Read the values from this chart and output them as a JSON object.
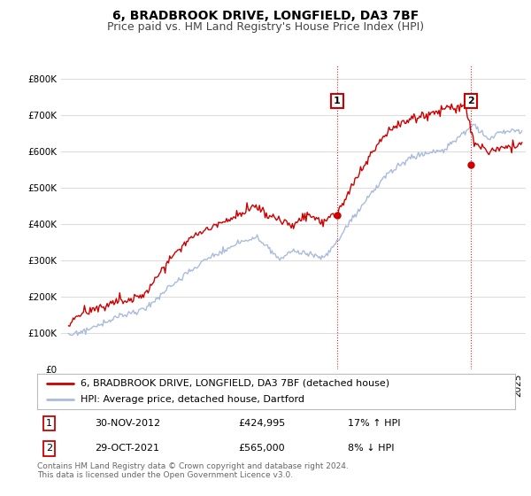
{
  "title": "6, BRADBROOK DRIVE, LONGFIELD, DA3 7BF",
  "subtitle": "Price paid vs. HM Land Registry's House Price Index (HPI)",
  "bg_color": "#ffffff",
  "plot_bg": "#ffffff",
  "line1_color": "#cc0000",
  "line2_color": "#aabbdd",
  "sale1_x": 2012.92,
  "sale1_price": 424995,
  "sale2_x": 2021.83,
  "sale2_price": 565000,
  "ylim": [
    0,
    840000
  ],
  "yticks": [
    0,
    100000,
    200000,
    300000,
    400000,
    500000,
    600000,
    700000,
    800000
  ],
  "ytick_labels": [
    "£0",
    "£100K",
    "£200K",
    "£300K",
    "£400K",
    "£500K",
    "£600K",
    "£700K",
    "£800K"
  ],
  "xlim_left": 1994.5,
  "xlim_right": 2025.5,
  "legend_line1": "6, BRADBROOK DRIVE, LONGFIELD, DA3 7BF (detached house)",
  "legend_line2": "HPI: Average price, detached house, Dartford",
  "row1_num": "1",
  "row1_date": "30-NOV-2012",
  "row1_price": "£424,995",
  "row1_hpi": "17% ↑ HPI",
  "row2_num": "2",
  "row2_date": "29-OCT-2021",
  "row2_price": "£565,000",
  "row2_hpi": "8% ↓ HPI",
  "footer": "Contains HM Land Registry data © Crown copyright and database right 2024.\nThis data is licensed under the Open Government Licence v3.0.",
  "title_fontsize": 10,
  "subtitle_fontsize": 9,
  "tick_fontsize": 7.5,
  "legend_fontsize": 8,
  "table_fontsize": 8,
  "footer_fontsize": 6.5
}
